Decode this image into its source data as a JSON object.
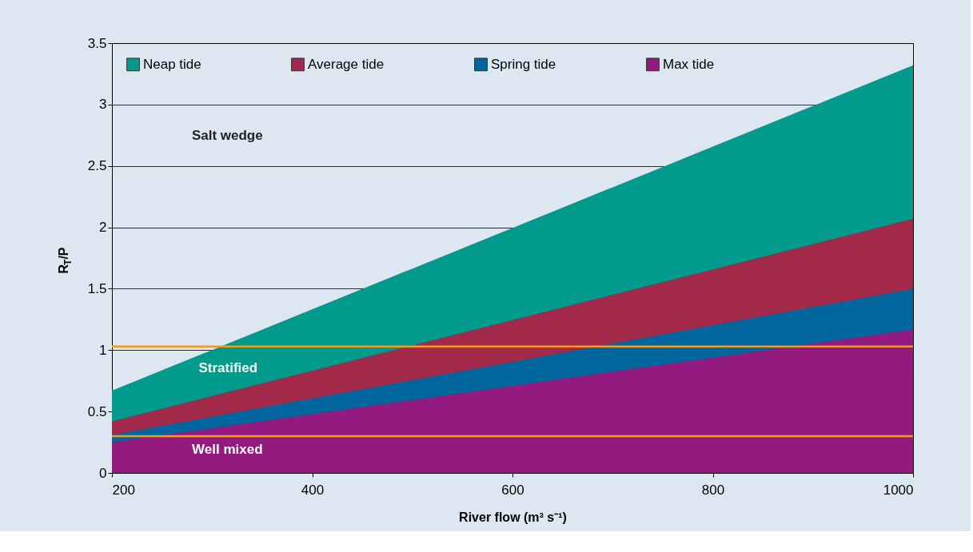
{
  "chart_data": {
    "type": "area",
    "xlabel": "River flow (m³ s⁻¹)",
    "ylabel": "R$_{T}$/P",
    "x": [
      200,
      1000
    ],
    "series": [
      {
        "name": "Neap tide",
        "color": "#009b8d",
        "values": [
          0.67,
          3.32
        ]
      },
      {
        "name": "Average tide",
        "color": "#a3294a",
        "values": [
          0.42,
          2.07
        ]
      },
      {
        "name": "Spring tide",
        "color": "#00679e",
        "values": [
          0.31,
          1.5
        ]
      },
      {
        "name": "Max tide",
        "color": "#931b80",
        "values": [
          0.25,
          1.17
        ]
      }
    ],
    "xlim": [
      200,
      1000
    ],
    "xticks": [
      200,
      400,
      600,
      800,
      1000
    ],
    "ylim": [
      0,
      3.5
    ],
    "yticks": [
      0,
      0.5,
      1,
      1.5,
      2,
      2.5,
      3,
      3.5
    ],
    "grid": "y",
    "legend": "top left",
    "ref_lines": [
      {
        "axis": "y",
        "value": 1.03,
        "color": "#f39a1e"
      },
      {
        "axis": "y",
        "value": 0.3,
        "color": "#f39a1e"
      }
    ],
    "annotations": [
      "Salt wedge",
      "Stratified",
      "Well mixed"
    ]
  }
}
